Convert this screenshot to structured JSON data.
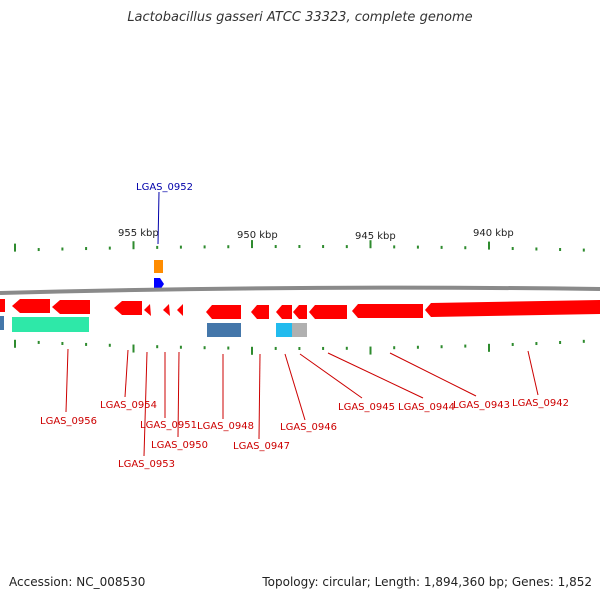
{
  "title": "Lactobacillus gasseri ATCC 33323, complete genome",
  "footer": {
    "accession": "Accession: NC_008530",
    "summary": "Topology: circular; Length: 1,894,360 bp; Genes: 1,852"
  },
  "scale_labels": [
    "955 kbp",
    "950 kbp",
    "945 kbp",
    "940 kbp"
  ],
  "colors": {
    "forward_gene": "#ff0000",
    "reverse_gene": "#ff0000",
    "backbone": "#8a8a8a",
    "ticks": "#2e8b2e",
    "label_red": "#cc0000",
    "label_blue": "#0000aa",
    "rna_blue": "#0000ff",
    "orange_feature": "#ff8c00",
    "teal_feature": "#2ee8a8",
    "steel_feature": "#4477aa",
    "cyan_feature": "#22bbee",
    "grey_feature": "#b0b0b0"
  },
  "gene_labels": {
    "top": "LGAS_0952",
    "bottom": [
      "LGAS_0956",
      "LGAS_0954",
      "LGAS_0951",
      "LGAS_0953",
      "LGAS_0950",
      "LGAS_0948",
      "LGAS_0947",
      "LGAS_0946",
      "LGAS_0945",
      "LGAS_0944",
      "LGAS_0943",
      "LGAS_0942"
    ]
  }
}
